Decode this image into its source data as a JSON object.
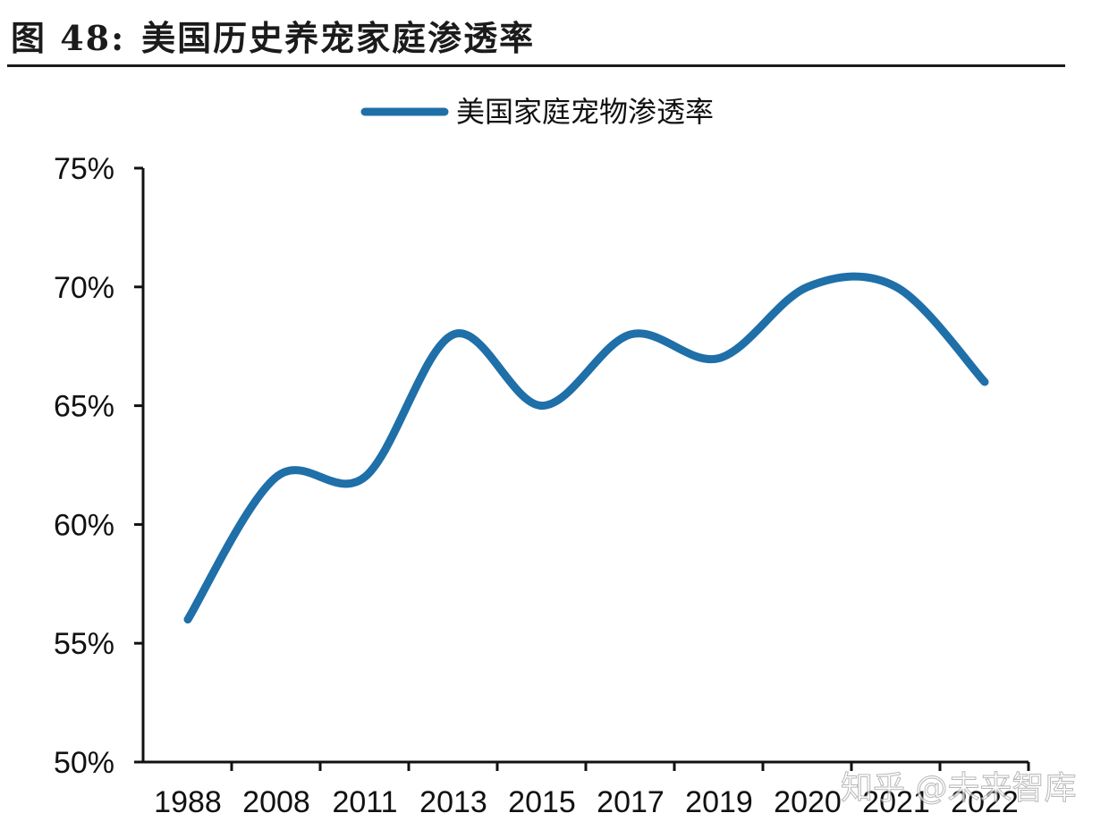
{
  "figure": {
    "number": "图 48:",
    "title": "美国历史养宠家庭渗透率"
  },
  "watermark": "知乎 @未来智库",
  "chart_data": {
    "type": "line",
    "title": "美国历史养宠家庭渗透率",
    "xlabel": "",
    "ylabel": "",
    "categories": [
      "1988",
      "2008",
      "2011",
      "2013",
      "2015",
      "2017",
      "2019",
      "2020",
      "2021",
      "2022"
    ],
    "series": [
      {
        "name": "美国家庭宠物渗透率",
        "color": "#1f6fa8",
        "values": [
          56,
          62,
          62,
          68,
          65,
          68,
          67,
          70,
          70,
          66
        ]
      }
    ],
    "ylim": [
      50,
      75
    ],
    "yticks": [
      50,
      55,
      60,
      65,
      70,
      75
    ],
    "ytick_labels": [
      "50%",
      "55%",
      "60%",
      "65%",
      "70%",
      "75%"
    ],
    "legend_position": "top-center",
    "grid": false
  }
}
